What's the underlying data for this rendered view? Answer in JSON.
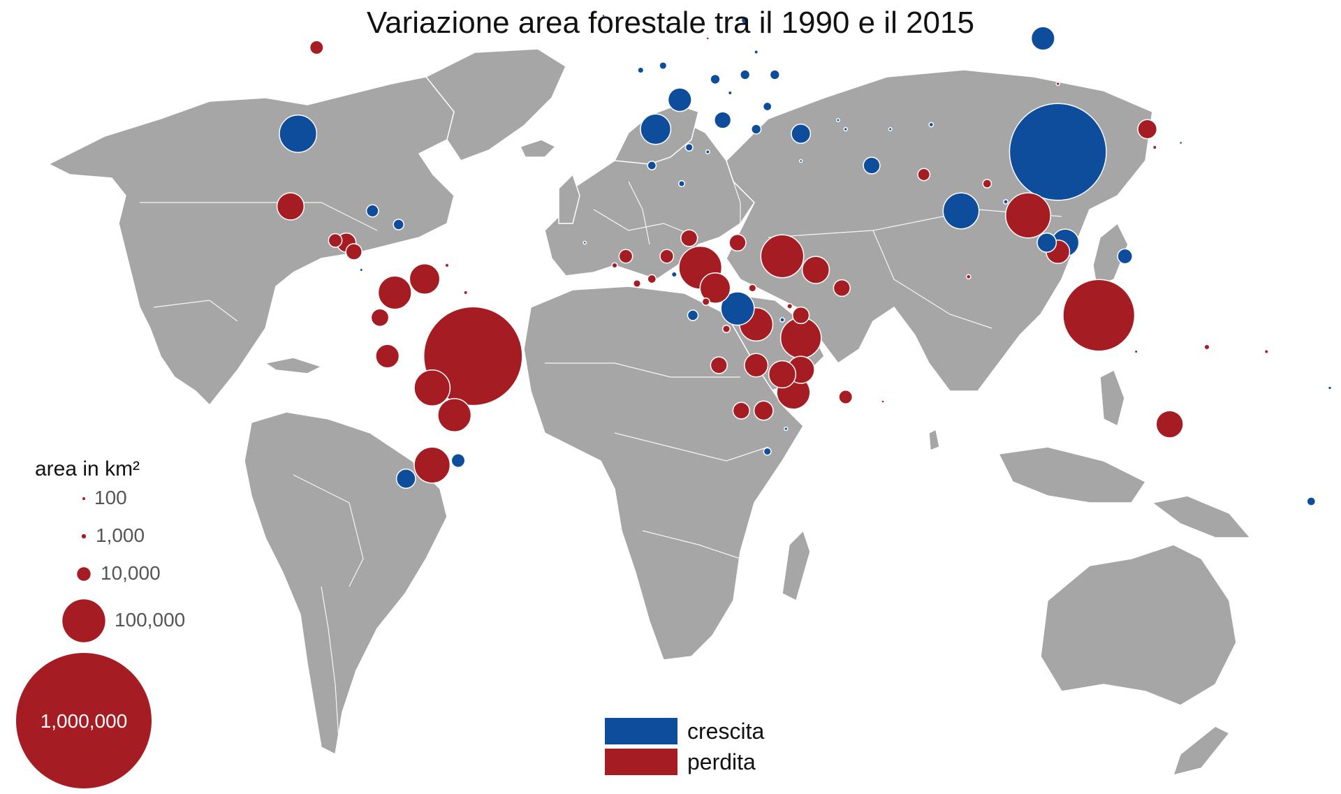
{
  "title": "Variazione area forestale tra il 1990 e il 2015",
  "colors": {
    "crescita": "#0d4d9c",
    "perdita": "#a51c23",
    "land": "#a6a6a6",
    "ocean": "#ffffff"
  },
  "legend": {
    "color": [
      {
        "key": "crescita",
        "label": "crescita"
      },
      {
        "key": "perdita",
        "label": "perdita"
      }
    ],
    "size_title": "area in km²",
    "size": [
      {
        "label": "100",
        "value": 100
      },
      {
        "label": "1,000",
        "value": 1000
      },
      {
        "label": "10,000",
        "value": 10000
      },
      {
        "label": "100,000",
        "value": 100000
      },
      {
        "label": "1,000,000",
        "value": 1000000
      }
    ]
  },
  "bubbles": [
    {
      "lon": 100,
      "lat": 60,
      "value": 30000,
      "type": "crescita"
    },
    {
      "lon": 104,
      "lat": 35,
      "value": 510000,
      "type": "crescita"
    },
    {
      "lon": -100,
      "lat": 39,
      "value": 76000,
      "type": "crescita"
    },
    {
      "lon": -53,
      "lat": -10,
      "value": 530000,
      "type": "perdita"
    },
    {
      "lon": 115,
      "lat": -1,
      "value": 280000,
      "type": "perdita"
    },
    {
      "lon": 23,
      "lat": -3,
      "value": 60000,
      "type": "perdita"
    },
    {
      "lon": -4,
      "lat": 40,
      "value": 50000,
      "type": "crescita"
    },
    {
      "lon": 2.5,
      "lat": 46.5,
      "value": 30000,
      "type": "crescita"
    },
    {
      "lon": 78,
      "lat": 22,
      "value": 70000,
      "type": "crescita"
    },
    {
      "lon": 96,
      "lat": 21,
      "value": 110000,
      "type": "perdita"
    },
    {
      "lon": 106,
      "lat": 15,
      "value": 40000,
      "type": "crescita"
    },
    {
      "lon": 30,
      "lat": 12,
      "value": 100000,
      "type": "perdita"
    },
    {
      "lon": 35,
      "lat": -6,
      "value": 90000,
      "type": "perdita"
    },
    {
      "lon": 18,
      "lat": 0.5,
      "value": 60000,
      "type": "crescita"
    },
    {
      "lon": 8,
      "lat": 9.5,
      "value": 100000,
      "type": "perdita"
    },
    {
      "lon": 12,
      "lat": 5,
      "value": 50000,
      "type": "perdita"
    },
    {
      "lon": -64,
      "lat": -17,
      "value": 70000,
      "type": "perdita"
    },
    {
      "lon": -58,
      "lat": -23,
      "value": 60000,
      "type": "perdita"
    },
    {
      "lon": -64,
      "lat": -34,
      "value": 70000,
      "type": "perdita"
    },
    {
      "lon": -74,
      "lat": 4,
      "value": 60000,
      "type": "perdita"
    },
    {
      "lon": -66,
      "lat": 7,
      "value": 50000,
      "type": "perdita"
    },
    {
      "lon": -102,
      "lat": 23,
      "value": 40000,
      "type": "perdita"
    },
    {
      "lon": 134,
      "lat": -25,
      "value": 40000,
      "type": "perdita"
    },
    {
      "lon": 33,
      "lat": -18,
      "value": 60000,
      "type": "perdita"
    },
    {
      "lon": 35,
      "lat": -13,
      "value": 40000,
      "type": "perdita"
    },
    {
      "lon": 30,
      "lat": -14,
      "value": 40000,
      "type": "perdita"
    },
    {
      "lon": 23,
      "lat": -12,
      "value": 30000,
      "type": "perdita"
    },
    {
      "lon": 39,
      "lat": 9,
      "value": 40000,
      "type": "perdita"
    },
    {
      "lon": 35,
      "lat": 39,
      "value": 20000,
      "type": "crescita"
    },
    {
      "lon": 128,
      "lat": 40,
      "value": 20000,
      "type": "perdita"
    },
    {
      "lon": 122,
      "lat": 12,
      "value": 12000,
      "type": "crescita"
    },
    {
      "lon": 101,
      "lat": 15,
      "value": 20000,
      "type": "crescita"
    },
    {
      "lon": 104,
      "lat": 13,
      "value": 30000,
      "type": "perdita"
    },
    {
      "lon": -71,
      "lat": -37,
      "value": 20000,
      "type": "crescita"
    },
    {
      "lon": -57,
      "lat": -33,
      "value": 10000,
      "type": "crescita"
    },
    {
      "lon": -76,
      "lat": -10,
      "value": 30000,
      "type": "perdita"
    },
    {
      "lon": -78,
      "lat": -1.5,
      "value": 17000,
      "type": "perdita"
    },
    {
      "lon": -87,
      "lat": 15,
      "value": 20000,
      "type": "perdita"
    },
    {
      "lon": -90,
      "lat": 15.5,
      "value": 10000,
      "type": "perdita"
    },
    {
      "lon": -85,
      "lat": 13,
      "value": 14000,
      "type": "perdita"
    },
    {
      "lon": -80,
      "lat": 22,
      "value": 8000,
      "type": "crescita"
    },
    {
      "lon": -73,
      "lat": 19,
      "value": 6000,
      "type": "crescita"
    },
    {
      "lon": -95,
      "lat": 58,
      "value": 10000,
      "type": "perdita"
    },
    {
      "lon": 14,
      "lat": 42,
      "value": 15000,
      "type": "crescita"
    },
    {
      "lon": 35,
      "lat": -1,
      "value": 15000,
      "type": "perdita"
    },
    {
      "lon": 47,
      "lat": -19,
      "value": 10000,
      "type": "perdita"
    },
    {
      "lon": 5,
      "lat": 16,
      "value": 15000,
      "type": "perdita"
    },
    {
      "lon": 18,
      "lat": 15,
      "value": 15000,
      "type": "perdita"
    },
    {
      "lon": 54,
      "lat": 32,
      "value": 15000,
      "type": "crescita"
    },
    {
      "lon": 68,
      "lat": 30,
      "value": 8000,
      "type": "perdita"
    },
    {
      "lon": -12,
      "lat": 12,
      "value": 10000,
      "type": "perdita"
    },
    {
      "lon": -1,
      "lat": 12,
      "value": 10000,
      "type": "perdita"
    },
    {
      "lon": 46,
      "lat": 5,
      "value": 15000,
      "type": "perdita"
    },
    {
      "lon": 19,
      "lat": -22,
      "value": 15000,
      "type": "perdita"
    },
    {
      "lon": 25,
      "lat": -22,
      "value": 20000,
      "type": "perdita"
    },
    {
      "lon": 13,
      "lat": -12,
      "value": 15000,
      "type": "perdita"
    },
    {
      "lon": 26,
      "lat": -31,
      "value": 3000,
      "type": "crescita"
    },
    {
      "lon": 28,
      "lat": 52,
      "value": 5000,
      "type": "crescita"
    },
    {
      "lon": 20,
      "lat": 52,
      "value": 5000,
      "type": "crescita"
    },
    {
      "lon": 26,
      "lat": 45,
      "value": 4000,
      "type": "crescita"
    },
    {
      "lon": 12,
      "lat": 51,
      "value": 5000,
      "type": "crescita"
    },
    {
      "lon": 23,
      "lat": 40,
      "value": 5000,
      "type": "crescita"
    },
    {
      "lon": 20,
      "lat": 64,
      "value": 3000,
      "type": "crescita"
    },
    {
      "lon": -5,
      "lat": 32,
      "value": 4000,
      "type": "crescita"
    },
    {
      "lon": 3,
      "lat": 28,
      "value": 2000,
      "type": "crescita"
    },
    {
      "lon": 5,
      "lat": 36,
      "value": 3000,
      "type": "crescita"
    },
    {
      "lon": 172,
      "lat": -42,
      "value": 4000,
      "type": "crescita"
    },
    {
      "lon": -2,
      "lat": 54,
      "value": 3000,
      "type": "crescita"
    },
    {
      "lon": -8,
      "lat": 53,
      "value": 2000,
      "type": "crescita"
    },
    {
      "lon": 80,
      "lat": 7.5,
      "value": 1000,
      "type": "perdita"
    },
    {
      "lon": 9.5,
      "lat": 2,
      "value": 3000,
      "type": "perdita"
    },
    {
      "lon": 6,
      "lat": -1,
      "value": 6000,
      "type": "crescita"
    },
    {
      "lon": 22,
      "lat": 5,
      "value": 3000,
      "type": "perdita"
    },
    {
      "lon": 15,
      "lat": -4,
      "value": 3000,
      "type": "perdita"
    },
    {
      "lon": 85,
      "lat": 28,
      "value": 4000,
      "type": "perdita"
    },
    {
      "lon": 90,
      "lat": 24,
      "value": 1000,
      "type": "crescita"
    },
    {
      "lon": 104,
      "lat": 50,
      "value": 600,
      "type": "perdita"
    },
    {
      "lon": 70,
      "lat": 41,
      "value": 1000,
      "type": "crescita"
    },
    {
      "lon": 59,
      "lat": 40,
      "value": 500,
      "type": "crescita"
    },
    {
      "lon": 130,
      "lat": 36,
      "value": 800,
      "type": "perdita"
    },
    {
      "lon": 137,
      "lat": 37,
      "value": 400,
      "type": "crescita"
    },
    {
      "lon": -60,
      "lat": 10,
      "value": 800,
      "type": "perdita"
    },
    {
      "lon": -55,
      "lat": 4,
      "value": 800,
      "type": "perdita"
    },
    {
      "lon": 177,
      "lat": -17,
      "value": 600,
      "type": "crescita"
    },
    {
      "lon": 160,
      "lat": -9,
      "value": 800,
      "type": "perdita"
    },
    {
      "lon": 144,
      "lat": -8,
      "value": 1500,
      "type": "perdita"
    },
    {
      "lon": 125,
      "lat": -9,
      "value": 500,
      "type": "perdita"
    },
    {
      "lon": -18,
      "lat": 65,
      "value": 200,
      "type": "crescita"
    },
    {
      "lon": 10,
      "lat": 60,
      "value": 200,
      "type": "perdita"
    },
    {
      "lon": -23,
      "lat": 15,
      "value": 200,
      "type": "crescita"
    },
    {
      "lon": 47,
      "lat": 40,
      "value": 600,
      "type": "crescita"
    },
    {
      "lon": 45,
      "lat": 42,
      "value": 500,
      "type": "crescita"
    },
    {
      "lon": 10,
      "lat": 35,
      "value": 800,
      "type": "crescita"
    },
    {
      "lon": -15,
      "lat": 10,
      "value": 1500,
      "type": "perdita"
    },
    {
      "lon": -9,
      "lat": 6,
      "value": 3000,
      "type": "perdita"
    },
    {
      "lon": -5,
      "lat": 7,
      "value": 4000,
      "type": "perdita"
    },
    {
      "lon": 1,
      "lat": 8,
      "value": 1500,
      "type": "crescita"
    },
    {
      "lon": 32,
      "lat": 1,
      "value": 1500,
      "type": "perdita"
    },
    {
      "lon": 30,
      "lat": -2,
      "value": 1000,
      "type": "crescita"
    },
    {
      "lon": 31,
      "lat": -26,
      "value": 600,
      "type": "crescita"
    },
    {
      "lon": 57,
      "lat": -20,
      "value": 200,
      "type": "perdita"
    },
    {
      "lon": 35,
      "lat": 33,
      "value": 300,
      "type": "crescita"
    },
    {
      "lon": 23,
      "lat": 57,
      "value": 800,
      "type": "crescita"
    },
    {
      "lon": 16,
      "lat": 48,
      "value": 800,
      "type": "crescita"
    },
    {
      "lon": -83,
      "lat": 9,
      "value": 500,
      "type": "crescita"
    }
  ]
}
